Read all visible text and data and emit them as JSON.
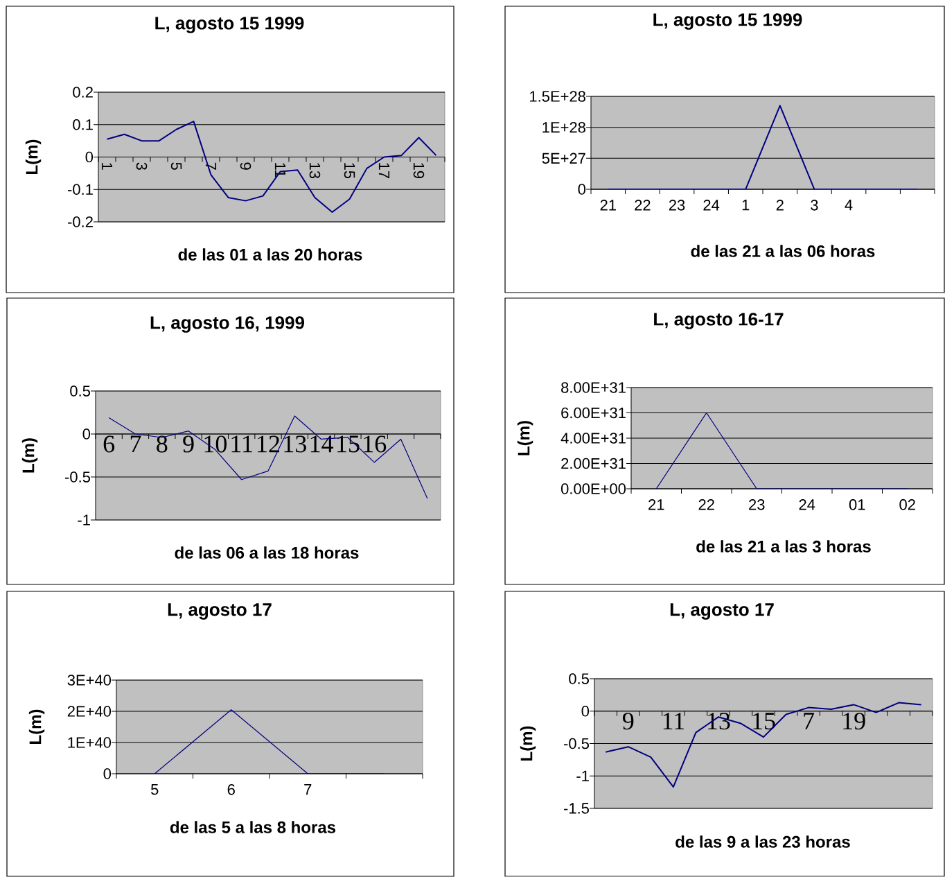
{
  "chart_data": [
    {
      "type": "line",
      "title": "L, agosto 15 1999",
      "xlabel": "de las 01 a las 20 horas",
      "ylabel": "L(m)",
      "color": "#000080",
      "grid": "y",
      "categories": [
        "1",
        null,
        "3",
        null,
        "5",
        null,
        "7",
        null,
        "9",
        null,
        "11",
        null,
        "13",
        null,
        "15",
        null,
        "17",
        null,
        "19",
        null
      ],
      "values": [
        0.055,
        0.07,
        0.05,
        0.05,
        0.085,
        0.11,
        -0.055,
        -0.125,
        -0.135,
        -0.12,
        -0.045,
        -0.04,
        -0.125,
        -0.17,
        -0.13,
        -0.035,
        0,
        0.005,
        0.06,
        0.005
      ],
      "ylim": [
        -0.2,
        0.2
      ],
      "yticks": [
        -0.2,
        -0.1,
        0,
        0.1,
        0.2
      ]
    },
    {
      "type": "line",
      "title": "L, agosto 15 1999",
      "xlabel": "de las 21 a las 06 horas",
      "color": "#000080",
      "grid": "y",
      "categories": [
        "21",
        "22",
        "23",
        "24",
        "1",
        "2",
        "3",
        "4",
        null,
        null
      ],
      "values": [
        0,
        0,
        0,
        0,
        0,
        1.35e+28,
        0,
        0,
        0,
        0
      ],
      "ylim": [
        0,
        1.5e+28
      ],
      "yticks": [
        0,
        {
          "value": 5e+27,
          "label": "5E+27"
        },
        {
          "value": 1e+28,
          "label": "1E+28"
        },
        {
          "value": 1.5e+28,
          "label": "1.5E+28"
        }
      ]
    },
    {
      "type": "line",
      "title": "L, agosto 16, 1999",
      "xlabel": "de las 06 a las 18 horas",
      "ylabel": "L(m)",
      "color": "#000080",
      "grid": "y",
      "categories": [
        "6",
        "7",
        "8",
        "9",
        "10",
        "11",
        "12",
        "13",
        "14",
        "15",
        "16",
        null,
        null
      ],
      "values": [
        0.19,
        0.0,
        -0.04,
        0.035,
        -0.18,
        -0.53,
        -0.43,
        0.21,
        -0.06,
        -0.04,
        -0.33,
        -0.06,
        -0.75
      ],
      "ylim": [
        -1,
        0.5
      ],
      "yticks": [
        -1,
        -0.5,
        0,
        0.5
      ]
    },
    {
      "type": "line",
      "title": "L, agosto 16-17",
      "xlabel": "de las 21 a las 3 horas",
      "ylabel": "L(m)",
      "color": "#000080",
      "grid": "y",
      "categories": [
        "21",
        "22",
        "23",
        "24",
        "01",
        "02"
      ],
      "values": [
        0,
        6e+31,
        0,
        0,
        0,
        0
      ],
      "ylim": [
        0,
        8e+31
      ],
      "yticks": [
        {
          "value": 0,
          "label": "0.00E+00"
        },
        {
          "value": 2e+31,
          "label": "2.00E+31"
        },
        {
          "value": 4e+31,
          "label": "4.00E+31"
        },
        {
          "value": 6e+31,
          "label": "6.00E+31"
        },
        {
          "value": 8e+31,
          "label": "8.00E+31"
        }
      ]
    },
    {
      "type": "line",
      "title": "L, agosto 17",
      "xlabel": "de las 5 a las 8 horas",
      "ylabel": "L(m)",
      "color": "#000080",
      "grid": "y",
      "categories": [
        "5",
        "6",
        "7",
        null
      ],
      "values": [
        0,
        2.05e+40,
        0,
        0
      ],
      "ylim": [
        0,
        3e+40
      ],
      "yticks": [
        0,
        {
          "value": 1e+40,
          "label": "1E+40"
        },
        {
          "value": 2e+40,
          "label": "2E+40"
        },
        {
          "value": 3e+40,
          "label": "3E+40"
        }
      ]
    },
    {
      "type": "line",
      "title": "L, agosto 17",
      "xlabel": "de las 9 a las 23 horas",
      "ylabel": "L(m)",
      "color": "#000080",
      "grid": "y",
      "categories": [
        null,
        "9",
        null,
        "11",
        null,
        "13",
        null,
        "15",
        null,
        "7",
        null,
        "19",
        null,
        null,
        null
      ],
      "values": [
        -0.63,
        -0.55,
        -0.71,
        -1.17,
        -0.33,
        -0.09,
        -0.19,
        -0.4,
        -0.05,
        0.055,
        0.03,
        0.1,
        -0.02,
        0.13,
        0.1
      ],
      "ylim": [
        -1.5,
        0.5
      ],
      "yticks": [
        -1.5,
        -1,
        -0.5,
        0,
        0.5
      ]
    }
  ]
}
